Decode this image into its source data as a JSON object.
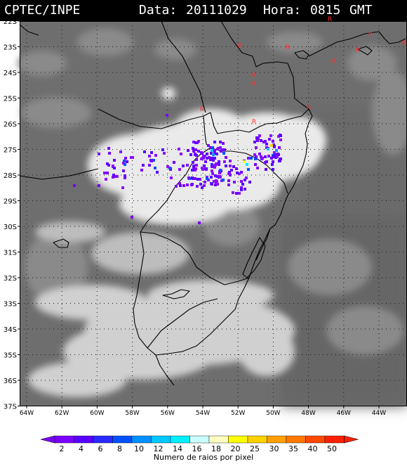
{
  "header": {
    "source": "CPTEC/INPE",
    "date_label": "Data:",
    "date_value": "20111029",
    "hour_label": "Hora:",
    "hour_value": "0815",
    "timezone": "GMT"
  },
  "map": {
    "lat_labels": [
      "22S",
      "23S",
      "24S",
      "25S",
      "26S",
      "27S",
      "28S",
      "29S",
      "30S",
      "31S",
      "32S",
      "33S",
      "34S",
      "35S",
      "36S",
      "37S"
    ],
    "lon_labels": [
      "64W",
      "62W",
      "60W",
      "58W",
      "56W",
      "54W",
      "52W",
      "50W",
      "48W",
      "46W",
      "44W"
    ],
    "station_marker": "R",
    "colors": {
      "background_gray": "#6e6e6e",
      "cloud_white": "#e8e8e8",
      "border_black": "#000000",
      "grid_dots": "#1a1a1a",
      "station_red": "#ff3030"
    }
  },
  "colorbar": {
    "labels": [
      "2",
      "4",
      "6",
      "8",
      "10",
      "12",
      "14",
      "16",
      "18",
      "20",
      "25",
      "30",
      "35",
      "40",
      "50"
    ],
    "colors": [
      "#7b00ff",
      "#5a00ff",
      "#2a2aff",
      "#0050ff",
      "#0090ff",
      "#00c8ff",
      "#00f0ff",
      "#c8ffff",
      "#ffffc0",
      "#ffff00",
      "#ffd200",
      "#ffa000",
      "#ff7800",
      "#ff4800",
      "#ff2000"
    ],
    "title": "Numero de raios por pixel"
  }
}
